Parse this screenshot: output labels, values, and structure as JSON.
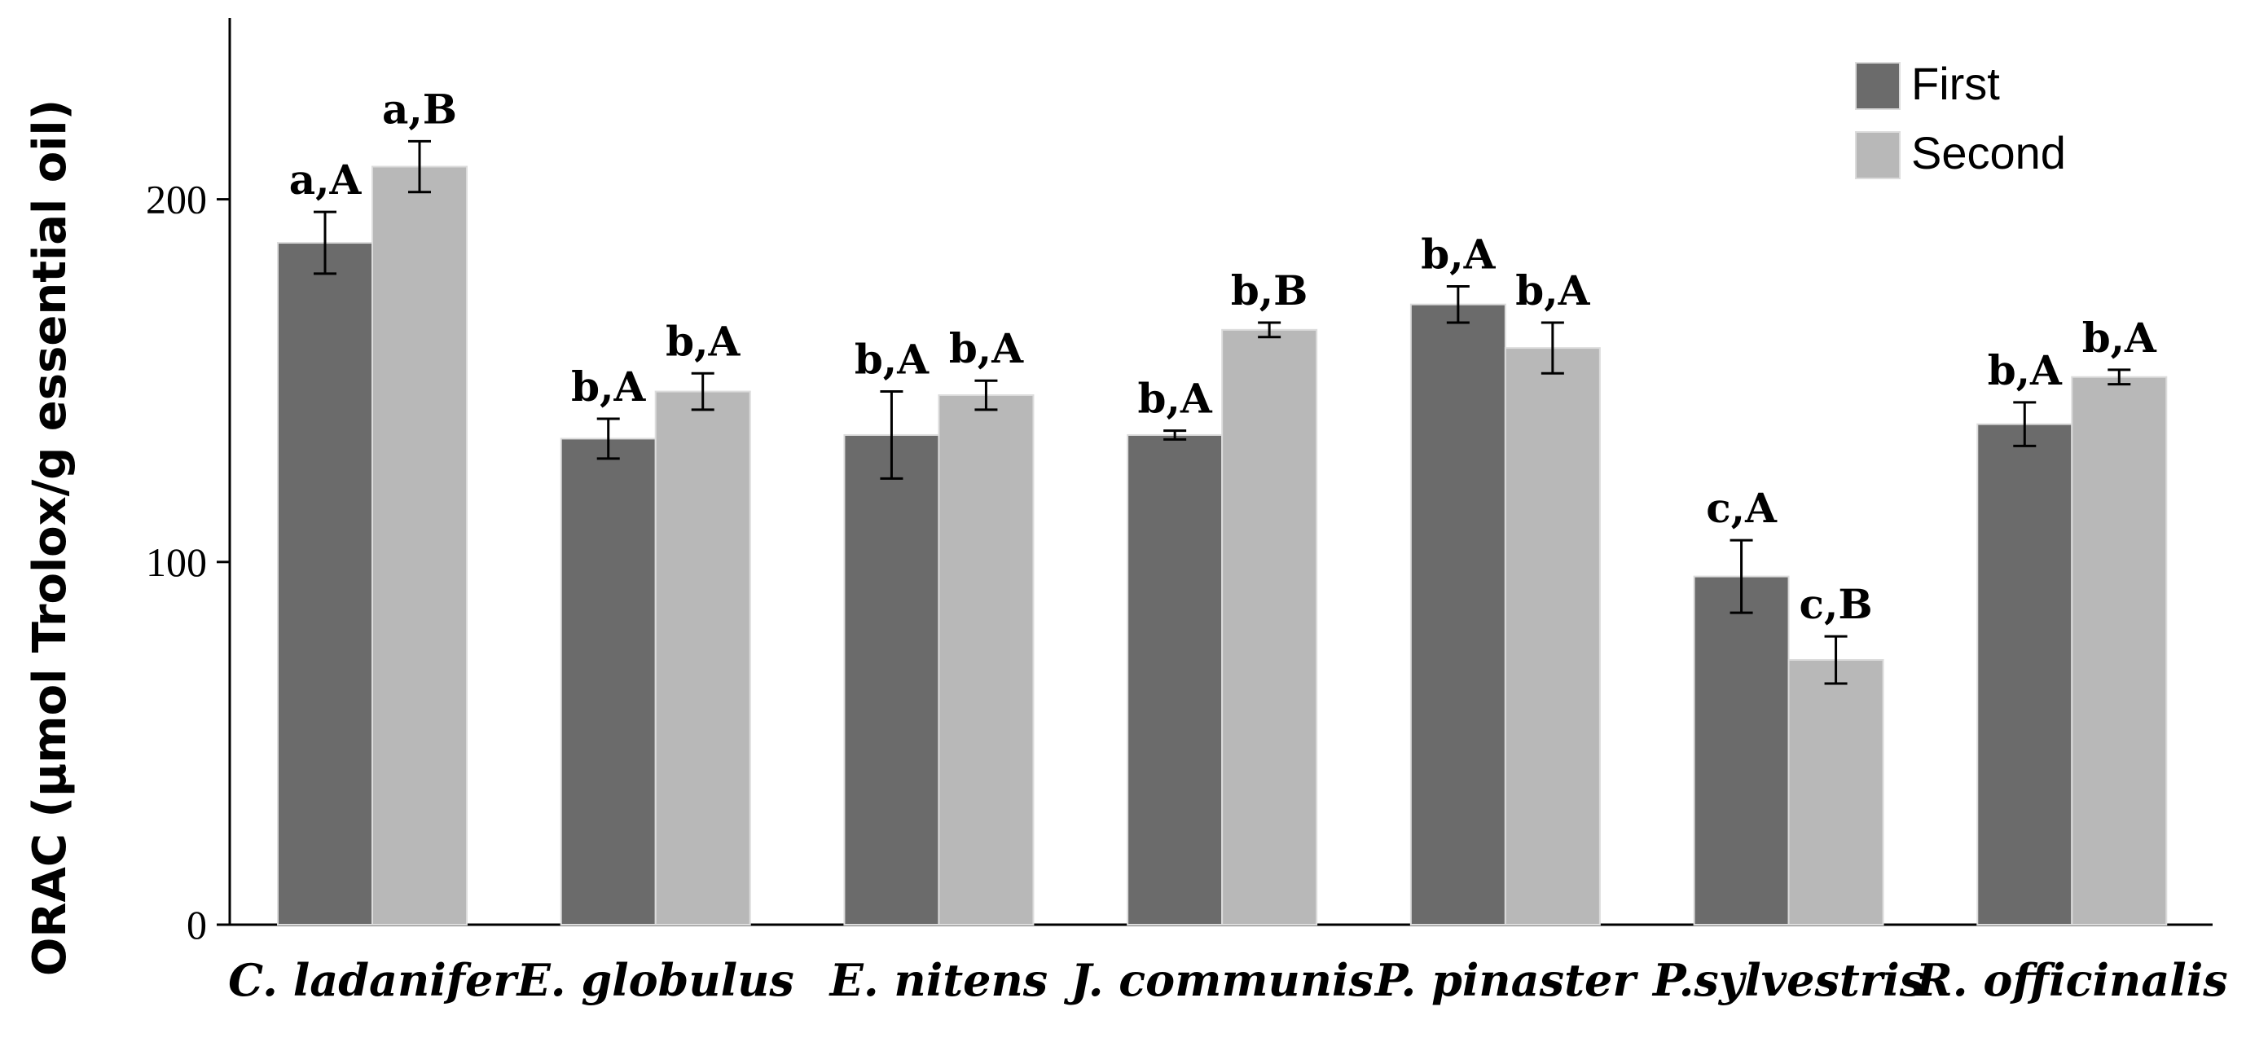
{
  "chart_data": {
    "type": "bar",
    "title": "",
    "xlabel": "",
    "ylabel": "ORAC (μmol Trolox/g essential oil)",
    "ylim": [
      0,
      250
    ],
    "yticks": [
      0,
      100,
      200
    ],
    "grid": false,
    "legend_position": "top-right",
    "categories": [
      "C. ladanifer",
      "E. globulus",
      "E. nitens",
      "J. communis",
      "P. pinaster",
      "P.sylvestris",
      "R. officinalis"
    ],
    "series": [
      {
        "name": "First",
        "color": "#6b6b6b",
        "values": [
          188,
          134,
          135,
          135,
          171,
          96,
          138
        ],
        "errors": [
          8.5,
          5.5,
          12,
          1.2,
          5,
          10,
          6
        ],
        "labels": [
          "a,A",
          "b,A",
          "b,A",
          "b,A",
          "b,A",
          "c,A",
          "b,A"
        ]
      },
      {
        "name": "Second",
        "color": "#b8b8b8",
        "values": [
          209,
          147,
          146,
          164,
          159,
          73,
          151
        ],
        "errors": [
          7,
          5,
          4,
          2,
          7,
          6.5,
          2
        ],
        "labels": [
          "a,B",
          "b,A",
          "b,A",
          "b,B",
          "b,A",
          "c,B",
          "b,A"
        ]
      }
    ]
  }
}
